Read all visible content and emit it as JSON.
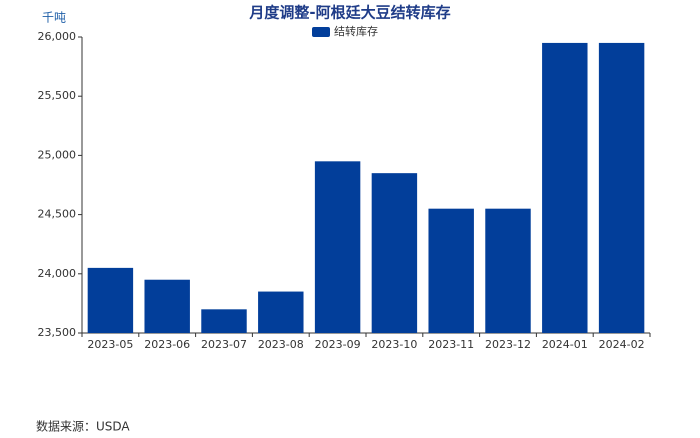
{
  "chart_data": {
    "type": "bar",
    "title": "月度调整-阿根廷大豆结转库存",
    "unit": "千吨",
    "source": "数据来源：USDA",
    "categories": [
      "2023-05",
      "2023-06",
      "2023-07",
      "2023-08",
      "2023-09",
      "2023-10",
      "2023-11",
      "2023-12",
      "2024-01",
      "2024-02"
    ],
    "series": [
      {
        "name": "结转库存",
        "color": "#023e9a",
        "values": [
          24050,
          23950,
          23700,
          23850,
          24950,
          24850,
          24550,
          24550,
          25950,
          25950
        ]
      }
    ],
    "ylim": [
      23500,
      26000
    ],
    "yticks": [
      {
        "value": 23500,
        "label": "23,500"
      },
      {
        "value": 24000,
        "label": "24,000"
      },
      {
        "value": 24500,
        "label": "24,500"
      },
      {
        "value": 25000,
        "label": "25,000"
      },
      {
        "value": 25500,
        "label": "25,500"
      },
      {
        "value": 26000,
        "label": "26,000"
      }
    ],
    "legend": "top"
  }
}
